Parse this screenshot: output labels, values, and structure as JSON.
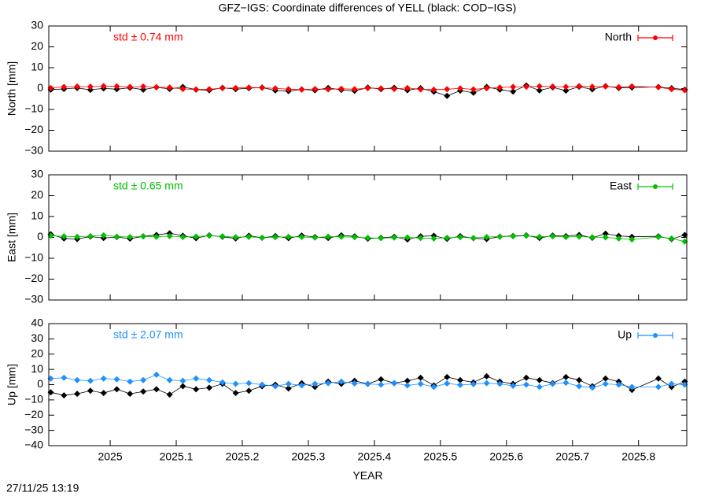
{
  "footer": "27/11/25 13:19",
  "chart_data": [
    {
      "type": "scatter",
      "title": "GFZ−IGS: Coordinate differences of YELL (black: COD−IGS)",
      "ylabel": "North [mm]",
      "annotation": "std ± 0.74 mm",
      "legend": "top-right",
      "xlim": [
        2024.907,
        2025.873
      ],
      "ylim": [
        -30,
        30
      ],
      "yticks": [
        {
          "value": -30,
          "label": "−30"
        },
        {
          "value": -20,
          "label": "−20"
        },
        {
          "value": -10,
          "label": "−10"
        },
        0,
        10,
        20,
        30
      ],
      "x": [
        2024.91,
        2024.93,
        2024.95,
        2024.97,
        2024.99,
        2025.01,
        2025.03,
        2025.05,
        2025.07,
        2025.09,
        2025.11,
        2025.13,
        2025.15,
        2025.17,
        2025.19,
        2025.21,
        2025.23,
        2025.25,
        2025.27,
        2025.29,
        2025.31,
        2025.33,
        2025.35,
        2025.37,
        2025.39,
        2025.41,
        2025.43,
        2025.45,
        2025.47,
        2025.49,
        2025.51,
        2025.53,
        2025.55,
        2025.57,
        2025.59,
        2025.61,
        2025.63,
        2025.65,
        2025.67,
        2025.69,
        2025.71,
        2025.73,
        2025.75,
        2025.77,
        2025.79,
        2025.83,
        2025.85,
        2025.87
      ],
      "series": [
        {
          "color": "#000000",
          "values": [
            -0.5,
            -0.2,
            0.3,
            -0.6,
            0.1,
            -0.3,
            0.4,
            -0.5,
            0.6,
            -0.2,
            0.8,
            -0.5,
            -0.8,
            0.4,
            -0.3,
            0.2,
            0.5,
            -0.9,
            -1.2,
            -0.4,
            -0.8,
            0.3,
            -0.6,
            -1.1,
            0.5,
            -0.3,
            0.4,
            -0.8,
            0.2,
            -1.5,
            -3.5,
            -1.0,
            -2.0,
            0.8,
            -0.5,
            -1.4,
            1.5,
            -0.9,
            0.6,
            -1.0,
            0.9,
            -0.4,
            1.2,
            0.3,
            0.5,
            0.8,
            0.2,
            -0.5
          ]
        },
        {
          "name": "North",
          "color": "#ff0000",
          "values": [
            0.3,
            0.8,
            1.0,
            0.9,
            1.2,
            1.1,
            0.8,
            1.0,
            0.7,
            0.5,
            -0.2,
            -0.4,
            -0.3,
            0.2,
            0.3,
            0.5,
            0.4,
            0.1,
            -0.3,
            -0.5,
            -0.2,
            -0.4,
            -0.1,
            -0.3,
            0.2,
            0.1,
            -0.2,
            0.3,
            -0.4,
            -0.5,
            -0.3,
            0.1,
            -0.4,
            0.2,
            0.5,
            0.8,
            0.9,
            1.1,
            1.0,
            0.8,
            1.2,
            0.9,
            1.0,
            0.7,
            1.1,
            0.6,
            -0.3,
            -0.8
          ]
        }
      ]
    },
    {
      "type": "scatter",
      "ylabel": "East [mm]",
      "annotation": "std ± 0.65 mm",
      "legend": "top-right",
      "xlim": [
        2024.907,
        2025.873
      ],
      "ylim": [
        -30,
        30
      ],
      "yticks": [
        {
          "value": -30,
          "label": "−30"
        },
        {
          "value": -20,
          "label": "−20"
        },
        {
          "value": -10,
          "label": "−10"
        },
        0,
        10,
        20,
        30
      ],
      "x": [
        2024.91,
        2024.93,
        2024.95,
        2024.97,
        2024.99,
        2025.01,
        2025.03,
        2025.05,
        2025.07,
        2025.09,
        2025.11,
        2025.13,
        2025.15,
        2025.17,
        2025.19,
        2025.21,
        2025.23,
        2025.25,
        2025.27,
        2025.29,
        2025.31,
        2025.33,
        2025.35,
        2025.37,
        2025.39,
        2025.41,
        2025.43,
        2025.45,
        2025.47,
        2025.49,
        2025.51,
        2025.53,
        2025.55,
        2025.57,
        2025.59,
        2025.61,
        2025.63,
        2025.65,
        2025.67,
        2025.69,
        2025.71,
        2025.73,
        2025.75,
        2025.77,
        2025.79,
        2025.83,
        2025.85,
        2025.87
      ],
      "series": [
        {
          "color": "#000000",
          "values": [
            1.5,
            -0.5,
            -0.8,
            0.4,
            -0.3,
            0.2,
            -0.6,
            0.5,
            1.2,
            2.0,
            0.8,
            -0.4,
            1.0,
            0.3,
            -0.5,
            0.8,
            -0.2,
            0.6,
            -0.4,
            0.9,
            0.2,
            -0.3,
            1.0,
            0.5,
            -0.6,
            -0.2,
            0.3,
            -1.0,
            0.5,
            0.8,
            -0.7,
            0.6,
            -0.4,
            -0.8,
            0.4,
            0.7,
            1.0,
            -0.3,
            0.9,
            0.6,
            1.2,
            -0.2,
            1.8,
            0.7,
            0.3,
            0.5,
            -0.8,
            1.2
          ]
        },
        {
          "name": "East",
          "color": "#00c000",
          "values": [
            0.8,
            0.5,
            0.3,
            0.6,
            1.0,
            0.4,
            0.2,
            0.5,
            0.3,
            0.6,
            0.2,
            0.4,
            0.8,
            0.5,
            0.1,
            0.3,
            -0.2,
            0.1,
            0.3,
            0.2,
            -0.1,
            0.4,
            0.3,
            0.1,
            -0.2,
            -0.4,
            -0.1,
            0.0,
            -0.3,
            -0.5,
            -0.2,
            0.1,
            -0.3,
            0.2,
            0.4,
            0.5,
            0.8,
            0.3,
            0.5,
            0.2,
            0.4,
            0.1,
            0.0,
            -0.5,
            -1.0,
            0.2,
            -0.5,
            -2.0
          ]
        }
      ]
    },
    {
      "type": "scatter",
      "ylabel": "Up [mm]",
      "xlabel": "YEAR",
      "annotation": "std ± 2.07 mm",
      "legend": "top-right",
      "xlim": [
        2024.907,
        2025.873
      ],
      "ylim": [
        -40,
        40
      ],
      "xticks": [
        2025,
        2025.1,
        2025.2,
        2025.3,
        2025.4,
        2025.5,
        2025.6,
        2025.7,
        2025.8
      ],
      "yticks": [
        {
          "value": -40,
          "label": "−40"
        },
        {
          "value": -30,
          "label": "−30"
        },
        {
          "value": -20,
          "label": "−20"
        },
        {
          "value": -10,
          "label": "−10"
        },
        0,
        10,
        20,
        30,
        40
      ],
      "x": [
        2024.91,
        2024.93,
        2024.95,
        2024.97,
        2024.99,
        2025.01,
        2025.03,
        2025.05,
        2025.07,
        2025.09,
        2025.11,
        2025.13,
        2025.15,
        2025.17,
        2025.19,
        2025.21,
        2025.23,
        2025.25,
        2025.27,
        2025.29,
        2025.31,
        2025.33,
        2025.35,
        2025.37,
        2025.39,
        2025.41,
        2025.43,
        2025.45,
        2025.47,
        2025.49,
        2025.51,
        2025.53,
        2025.55,
        2025.57,
        2025.59,
        2025.61,
        2025.63,
        2025.65,
        2025.67,
        2025.69,
        2025.71,
        2025.73,
        2025.75,
        2025.77,
        2025.79,
        2025.83,
        2025.85,
        2025.87
      ],
      "series": [
        {
          "color": "#000000",
          "values": [
            -5.0,
            -7.0,
            -6.0,
            -4.0,
            -5.5,
            -3.0,
            -6.0,
            -4.5,
            -3.0,
            -6.5,
            -1.0,
            -3.0,
            -2.0,
            0.5,
            -5.5,
            -4.0,
            -1.0,
            0.0,
            -2.5,
            1.0,
            -1.5,
            2.0,
            0.5,
            2.5,
            0.5,
            3.5,
            1.0,
            2.5,
            4.5,
            -0.5,
            5.0,
            3.0,
            1.5,
            5.5,
            2.0,
            0.5,
            4.5,
            3.0,
            1.0,
            5.0,
            3.0,
            -1.0,
            4.0,
            2.0,
            -3.5,
            4.0,
            -1.5,
            2.0
          ]
        },
        {
          "name": "Up",
          "color": "#1e90ff",
          "values": [
            4.0,
            4.5,
            3.0,
            2.5,
            4.0,
            3.5,
            2.0,
            3.0,
            6.5,
            3.0,
            2.5,
            4.0,
            3.0,
            1.5,
            0.5,
            1.0,
            0.0,
            -1.0,
            0.5,
            -0.5,
            0.5,
            1.0,
            2.0,
            0.8,
            0.5,
            0.0,
            1.0,
            -0.5,
            0.5,
            -1.5,
            0.8,
            -0.2,
            0.3,
            1.0,
            0.5,
            -0.8,
            0.0,
            -1.5,
            0.5,
            1.2,
            -1.0,
            -2.0,
            0.5,
            0.0,
            -1.5,
            -1.5,
            0.5,
            0.0
          ]
        }
      ]
    }
  ]
}
